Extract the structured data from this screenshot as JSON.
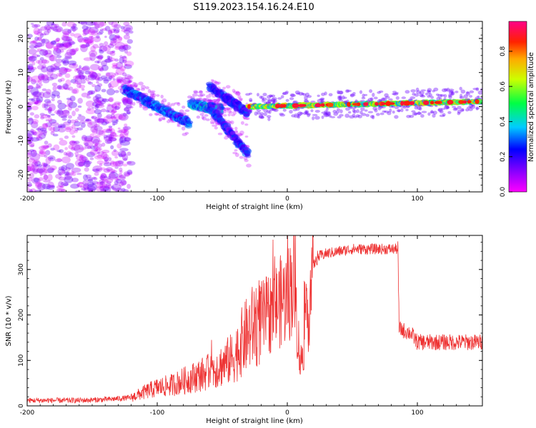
{
  "title": "S119.2023.154.16.24.E10",
  "chart_data": [
    {
      "type": "heatmap",
      "xlabel": "Height of straight line (km)",
      "ylabel": "Frequency (Hz)",
      "xlim": [
        -200,
        150
      ],
      "ylim": [
        -25,
        25
      ],
      "xticks": [
        -200,
        -100,
        0,
        100
      ],
      "xtick_labels": [
        "-200",
        "-100",
        "0",
        "100"
      ],
      "yticks": [
        -20,
        -10,
        0,
        10,
        20
      ],
      "ytick_labels": [
        "-20",
        "-10",
        "0",
        "10",
        "20"
      ],
      "colorbar": {
        "label": "Normalized spectral amplitude",
        "range": [
          0,
          0.97
        ],
        "ticks": [
          0,
          0.2,
          0.4,
          0.6,
          0.8
        ],
        "tick_labels": [
          "0.0",
          "0.2",
          "0.4",
          "0.6",
          "0.8"
        ],
        "colormap": "rainbow (magenta-purple-blue-cyan-green-yellow-red-pink)"
      },
      "features": [
        {
          "x_range": [
            -200,
            -120
          ],
          "y_range": [
            -25,
            25
          ],
          "amplitude": 0.1
        },
        {
          "x_range": [
            -125,
            -75
          ],
          "freq_start": 5,
          "freq_end": -5,
          "amplitude": 0.3
        },
        {
          "x_range": [
            -75,
            -50
          ],
          "freq_start": 1,
          "freq_end": -1,
          "amplitude": 0.35
        },
        {
          "x_range": [
            -60,
            -30
          ],
          "freq_start": 0,
          "freq_end": -14,
          "amplitude": 0.25
        },
        {
          "x_range": [
            -60,
            -30
          ],
          "freq_start": 6,
          "freq_end": -2,
          "amplitude": 0.25
        },
        {
          "x_range": [
            -30,
            150
          ],
          "freq_start": 0,
          "freq_end": 1.5,
          "amplitude": 0.6
        }
      ]
    },
    {
      "type": "line",
      "xlabel": "Height of straight line (km)",
      "ylabel": "SNR (10 * v/v)",
      "xlim": [
        -200,
        150
      ],
      "ylim": [
        0,
        375
      ],
      "xticks": [
        -200,
        -100,
        0,
        100
      ],
      "xtick_labels": [
        "-200",
        "-100",
        "0",
        "100"
      ],
      "yticks": [
        0,
        100,
        200,
        300
      ],
      "ytick_labels": [
        "0",
        "100",
        "200",
        "300"
      ],
      "line_color": "#ee3333",
      "series": [
        {
          "x": [
            -200,
            -180,
            -160,
            -140,
            -120,
            -110,
            -100,
            -90,
            -80,
            -70,
            -60,
            -50,
            -40,
            -35,
            -30,
            -25,
            -20,
            -15,
            -10,
            -5,
            0,
            5,
            10,
            15,
            20,
            25,
            30,
            40,
            50,
            60,
            70,
            80,
            85,
            86,
            90,
            95,
            100,
            110,
            120,
            130,
            140,
            150
          ],
          "values": [
            12,
            12,
            12,
            14,
            18,
            30,
            40,
            45,
            55,
            65,
            75,
            90,
            110,
            140,
            160,
            180,
            190,
            200,
            215,
            230,
            240,
            280,
            90,
            180,
            310,
            330,
            335,
            340,
            345,
            345,
            345,
            345,
            345,
            170,
            165,
            160,
            140,
            140,
            140,
            140,
            140,
            140
          ]
        }
      ]
    }
  ]
}
